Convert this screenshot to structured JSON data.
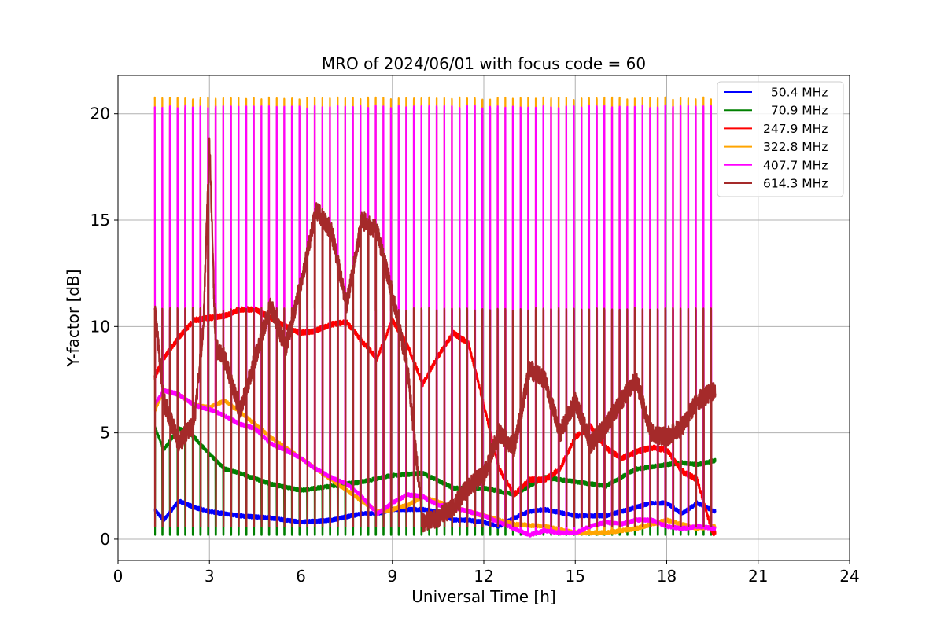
{
  "chart_data": {
    "type": "line",
    "title": "MRO of 2024/06/01 with focus code = 60",
    "xlabel": "Universal Time [h]",
    "ylabel": "Y-factor [dB]",
    "xlim": [
      0,
      24
    ],
    "ylim": [
      -1,
      21.8
    ],
    "xticks": [
      0,
      3,
      6,
      9,
      12,
      15,
      18,
      21,
      24
    ],
    "yticks": [
      0,
      5,
      10,
      15,
      20
    ],
    "grid": true,
    "legend_position": "top-right",
    "data_range_hours": [
      1.2,
      19.6
    ],
    "calibration_spike_period_hours": 0.25,
    "series": [
      {
        "name": "  50.4 MHz",
        "color": "#0000ff",
        "x": [
          1.2,
          1.5,
          2.0,
          2.5,
          3.0,
          4.0,
          5.0,
          6.0,
          7.0,
          8.0,
          8.5,
          9.0,
          9.5,
          10.0,
          10.5,
          11.0,
          11.5,
          12.0,
          12.5,
          13.0,
          13.5,
          14.0,
          15.0,
          16.0,
          17.0,
          17.5,
          18.0,
          18.5,
          19.0,
          19.6
        ],
        "y": [
          1.4,
          0.9,
          1.8,
          1.5,
          1.3,
          1.1,
          1.0,
          0.8,
          0.9,
          1.2,
          1.2,
          1.4,
          1.4,
          1.4,
          1.3,
          0.9,
          0.9,
          0.8,
          0.6,
          1.0,
          1.3,
          1.4,
          1.1,
          1.1,
          1.5,
          1.7,
          1.7,
          1.2,
          1.7,
          1.3
        ]
      },
      {
        "name": "  70.9 MHz",
        "color": "#008000",
        "x": [
          1.2,
          1.5,
          2.0,
          2.5,
          3.0,
          3.5,
          4.0,
          5.0,
          6.0,
          7.0,
          8.0,
          9.0,
          10.0,
          11.0,
          12.0,
          13.0,
          14.0,
          15.0,
          16.0,
          17.0,
          18.0,
          18.5,
          19.0,
          19.6
        ],
        "y": [
          5.3,
          4.2,
          5.2,
          4.8,
          4.0,
          3.3,
          3.1,
          2.6,
          2.3,
          2.5,
          2.7,
          3.0,
          3.1,
          2.4,
          2.4,
          2.1,
          2.9,
          2.7,
          2.5,
          3.3,
          3.5,
          3.6,
          3.5,
          3.7
        ],
        "spike_low": 0.2
      },
      {
        "name": "247.9 MHz",
        "color": "#ff0000",
        "x": [
          1.2,
          1.5,
          2.0,
          2.5,
          3.0,
          3.5,
          4.0,
          4.5,
          5.0,
          5.5,
          6.0,
          6.5,
          7.0,
          7.5,
          8.0,
          8.5,
          9.0,
          9.5,
          10.0,
          10.5,
          11.0,
          11.5,
          12.0,
          12.5,
          13.0,
          13.5,
          14.0,
          14.5,
          15.0,
          15.5,
          16.0,
          16.5,
          17.0,
          17.5,
          18.0,
          18.5,
          19.0,
          19.5
        ],
        "y": [
          7.6,
          8.5,
          9.5,
          10.3,
          10.4,
          10.5,
          10.8,
          10.8,
          10.4,
          10.0,
          9.7,
          9.8,
          10.1,
          10.2,
          9.3,
          8.5,
          10.3,
          9.1,
          7.3,
          8.6,
          9.7,
          9.2,
          6.3,
          3.3,
          2.1,
          2.8,
          2.8,
          3.3,
          4.8,
          5.3,
          4.3,
          3.8,
          4.1,
          4.3,
          4.2,
          3.2,
          2.8,
          0.3
        ]
      },
      {
        "name": "322.8 MHz",
        "color": "#ffa500",
        "x": [
          1.2,
          1.5,
          2.0,
          2.5,
          3.0,
          3.5,
          4.0,
          5.0,
          6.0,
          7.0,
          8.0,
          8.5,
          9.0,
          9.5,
          10.0,
          11.0,
          12.0,
          13.0,
          14.0,
          15.0,
          16.0,
          17.0,
          18.0,
          19.0,
          19.6
        ],
        "y": [
          6.0,
          7.0,
          6.8,
          6.3,
          6.2,
          6.5,
          6.0,
          4.8,
          3.8,
          2.8,
          1.8,
          1.3,
          1.4,
          1.6,
          2.0,
          1.5,
          1.1,
          0.7,
          0.6,
          0.3,
          0.3,
          0.5,
          0.9,
          0.5,
          0.6
        ],
        "spike_high": 20.7
      },
      {
        "name": "407.7 MHz",
        "color": "#ff00ff",
        "x": [
          1.2,
          1.5,
          2.0,
          2.5,
          3.0,
          3.5,
          4.0,
          4.5,
          5.0,
          5.5,
          6.0,
          6.5,
          7.0,
          7.5,
          8.0,
          8.5,
          9.0,
          9.5,
          10.0,
          10.5,
          11.0,
          11.5,
          12.0,
          12.5,
          13.0,
          13.5,
          14.0,
          14.5,
          15.0,
          15.5,
          16.0,
          16.5,
          17.0,
          17.5,
          18.0,
          18.5,
          19.0,
          19.6
        ],
        "y": [
          6.3,
          7.0,
          6.8,
          6.3,
          6.1,
          5.8,
          5.4,
          5.2,
          4.5,
          4.2,
          3.8,
          3.3,
          2.9,
          2.6,
          2.0,
          1.2,
          1.7,
          2.1,
          2.0,
          1.6,
          1.5,
          1.3,
          1.1,
          0.8,
          0.5,
          0.2,
          0.4,
          0.3,
          0.3,
          0.6,
          0.8,
          0.7,
          0.9,
          0.9,
          0.6,
          0.5,
          0.6,
          0.5
        ],
        "spike_high": 20.3,
        "spike_mid": 10.8
      },
      {
        "name": "614.3 MHz",
        "color": "#a52a2a",
        "x": [
          1.2,
          1.5,
          2.0,
          2.5,
          2.8,
          3.0,
          3.2,
          3.5,
          4.0,
          4.5,
          5.0,
          5.5,
          6.0,
          6.5,
          7.0,
          7.5,
          8.0,
          8.5,
          9.0,
          9.5,
          10.0,
          10.5,
          11.0,
          11.5,
          12.0,
          12.5,
          13.0,
          13.5,
          14.0,
          14.5,
          15.0,
          15.5,
          16.0,
          16.5,
          17.0,
          17.5,
          18.0,
          18.5,
          19.0,
          19.6
        ],
        "y": [
          11.0,
          6.5,
          4.5,
          5.5,
          10.0,
          18.8,
          9.0,
          8.5,
          6.0,
          8.5,
          11.0,
          9.0,
          12.0,
          15.5,
          14.5,
          11.0,
          15.0,
          14.5,
          11.5,
          8.0,
          0.8,
          1.0,
          1.5,
          2.5,
          3.0,
          5.0,
          4.3,
          8.0,
          7.5,
          5.0,
          6.5,
          4.5,
          5.3,
          6.5,
          7.5,
          5.0,
          4.8,
          5.3,
          6.5,
          7.0
        ],
        "spike_high": 10.8,
        "spike_low": 0.6
      }
    ]
  }
}
